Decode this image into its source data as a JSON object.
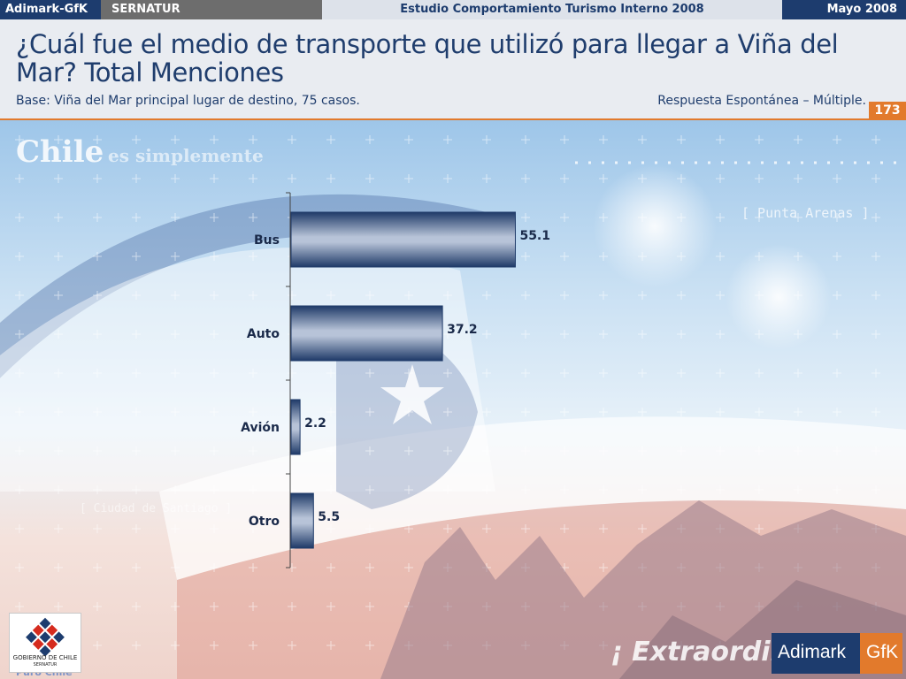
{
  "topbar": {
    "company": "Adimark-GfK",
    "client": "SERNATUR",
    "study": "Estudio Comportamiento Turismo Interno 2008",
    "date": "Mayo 2008"
  },
  "header": {
    "title": "¿Cuál fue el medio de transporte que utilizó para llegar a Viña del Mar? Total Menciones",
    "base": "Base: Viña del Mar principal lugar de destino, 75 casos.",
    "response_type": "Respuesta Espontánea – Múltiple.",
    "page_number": "173"
  },
  "background_text": {
    "slogan_a": "Chile",
    "slogan_b": "es simplemente",
    "place_a": "[ Punta Arenas ]",
    "place_b": "[ Ciudad de Santiago ]",
    "slogan_c": "¡ Extraordinario",
    "bottom_left": "Puro Chile"
  },
  "logos": {
    "gobierno_line1": "GOBIERNO DE CHILE",
    "gobierno_line2": "SERNATUR",
    "adimark": "Adimark",
    "gfk": "GfK"
  },
  "colors": {
    "navy": "#1d3c6e",
    "orange": "#e27a2c",
    "bar_dark": "#1f3a68",
    "bar_light": "#b7c3d8"
  },
  "chart_data": {
    "type": "bar",
    "orientation": "horizontal",
    "categories": [
      "Bus",
      "Auto",
      "Avión",
      "Otro"
    ],
    "values": [
      55.1,
      37.2,
      2.2,
      5.5
    ],
    "xlim": [
      0,
      100
    ]
  }
}
